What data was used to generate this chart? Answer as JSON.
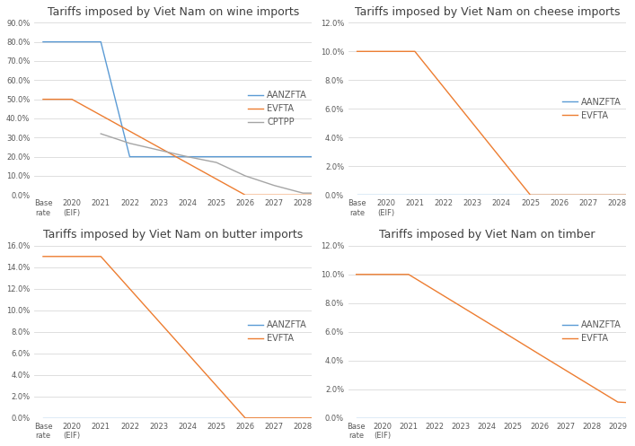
{
  "wine": {
    "title": "Tariffs imposed by Viet Nam on wine imports",
    "ylim": [
      0,
      0.9
    ],
    "yticks": [
      0.0,
      0.1,
      0.2,
      0.3,
      0.4,
      0.5,
      0.6,
      0.7,
      0.8,
      0.9
    ],
    "series": {
      "AANZFTA": {
        "color": "#5B9BD5",
        "x": [
          0,
          1,
          2,
          3,
          4,
          5,
          6,
          7,
          8,
          9,
          10
        ],
        "y": [
          0.8,
          0.8,
          0.8,
          0.2,
          0.2,
          0.2,
          0.2,
          0.2,
          0.2,
          0.2,
          0.2
        ]
      },
      "EVFTA": {
        "color": "#ED7D31",
        "x": [
          0,
          1,
          2,
          3,
          4,
          5,
          6,
          7,
          8,
          9,
          10
        ],
        "y": [
          0.5,
          0.5,
          0.4167,
          0.3333,
          0.25,
          0.1667,
          0.0833,
          0.0,
          0.0,
          0.0,
          0.0
        ]
      },
      "CPTPP": {
        "color": "#A5A5A5",
        "x": [
          2,
          3,
          4,
          5,
          6,
          7,
          8,
          9,
          10
        ],
        "y": [
          0.32,
          0.27,
          0.235,
          0.2,
          0.17,
          0.1,
          0.05,
          0.01,
          0.01
        ]
      }
    },
    "legend_series": [
      "AANZFTA",
      "EVFTA",
      "CPTPP"
    ]
  },
  "cheese": {
    "title": "Tariffs imposed by Viet Nam on cheese imports",
    "ylim": [
      0,
      0.12
    ],
    "yticks": [
      0.0,
      0.02,
      0.04,
      0.06,
      0.08,
      0.1,
      0.12
    ],
    "series": {
      "AANZFTA": {
        "color": "#5B9BD5",
        "x": [
          0,
          1,
          2,
          3,
          4,
          5,
          6,
          7,
          8,
          9,
          10
        ],
        "y": [
          0.0,
          0.0,
          0.0,
          0.0,
          0.0,
          0.0,
          0.0,
          0.0,
          0.0,
          0.0,
          0.0
        ]
      },
      "EVFTA": {
        "color": "#ED7D31",
        "x": [
          0,
          1,
          2,
          3,
          4,
          5,
          6,
          7,
          8,
          9,
          10
        ],
        "y": [
          0.1,
          0.1,
          0.1,
          0.075,
          0.05,
          0.025,
          0.0,
          0.0,
          0.0,
          0.0,
          0.0
        ]
      }
    },
    "legend_series": [
      "AANZFTA",
      "EVFTA"
    ]
  },
  "butter": {
    "title": "Tariffs imposed by Viet Nam on butter imports",
    "ylim": [
      0,
      0.16
    ],
    "yticks": [
      0.0,
      0.02,
      0.04,
      0.06,
      0.08,
      0.1,
      0.12,
      0.14,
      0.16
    ],
    "series": {
      "AANZFTA": {
        "color": "#5B9BD5",
        "x": [
          0,
          1,
          2,
          3,
          4,
          5,
          6,
          7,
          8,
          9,
          10
        ],
        "y": [
          0.0,
          0.0,
          0.0,
          0.0,
          0.0,
          0.0,
          0.0,
          0.0,
          0.0,
          0.0,
          0.0
        ]
      },
      "EVFTA": {
        "color": "#ED7D31",
        "x": [
          0,
          1,
          2,
          3,
          4,
          5,
          6,
          7,
          8,
          9,
          10
        ],
        "y": [
          0.15,
          0.15,
          0.15,
          0.12,
          0.09,
          0.06,
          0.03,
          0.0,
          0.0,
          0.0,
          0.0
        ]
      }
    },
    "legend_series": [
      "AANZFTA",
      "EVFTA"
    ]
  },
  "timber": {
    "title": "Tariffs imposed by Viet Nam on timber",
    "ylim": [
      0,
      0.12
    ],
    "yticks": [
      0.0,
      0.02,
      0.04,
      0.06,
      0.08,
      0.1,
      0.12
    ],
    "series": {
      "AANZFTA": {
        "color": "#5B9BD5",
        "x": [
          0,
          1,
          2,
          3,
          4,
          5,
          6,
          7,
          8,
          9,
          10,
          11
        ],
        "y": [
          0.0,
          0.0,
          0.0,
          0.0,
          0.0,
          0.0,
          0.0,
          0.0,
          0.0,
          0.0,
          0.0,
          0.0
        ]
      },
      "EVFTA": {
        "color": "#ED7D31",
        "x": [
          0,
          1,
          2,
          3,
          4,
          5,
          6,
          7,
          8,
          9,
          10,
          11
        ],
        "y": [
          0.1,
          0.1,
          0.1,
          0.0889,
          0.0778,
          0.0667,
          0.0556,
          0.0444,
          0.0333,
          0.0222,
          0.0111,
          0.01
        ]
      }
    },
    "legend_series": [
      "AANZFTA",
      "EVFTA"
    ]
  },
  "xlabels_wine": [
    "Base\nrate",
    "2020\n(EIF)",
    "2021",
    "2022",
    "2023",
    "2024",
    "2025",
    "2026",
    "2027",
    "2028"
  ],
  "xlabels_cheese": [
    "Base\nrate",
    "2020\n(EIF)",
    "2021",
    "2022",
    "2023",
    "2024",
    "2025",
    "2026",
    "2027",
    "2028"
  ],
  "xlabels_butter": [
    "Base\nrate",
    "2020\n(EIF)",
    "2021",
    "2022",
    "2023",
    "2024",
    "2025",
    "2026",
    "2027",
    "2028"
  ],
  "xlabels_timber": [
    "Base\nrate",
    "2020\n(EIF)",
    "2021",
    "2022",
    "2023",
    "2024",
    "2025",
    "2026",
    "2027",
    "2028",
    "2029"
  ],
  "background_color": "#FFFFFF",
  "grid_color": "#D9D9D9",
  "legend_fontsize": 7,
  "tick_fontsize": 6,
  "title_fontsize": 9
}
